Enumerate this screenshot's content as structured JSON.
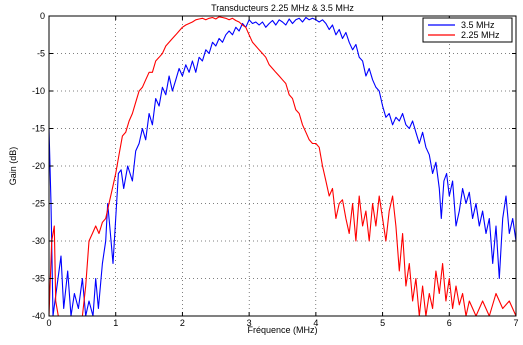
{
  "chart_data": {
    "type": "line",
    "title": "Transducteurs 2.25 MHz & 3.5 MHz",
    "xlabel": "Fréquence (MHz)",
    "ylabel": "Gain (dB)",
    "xlim": [
      0,
      7
    ],
    "ylim": [
      -40,
      0
    ],
    "xticks": [
      0,
      1,
      2,
      3,
      4,
      5,
      6,
      7
    ],
    "yticks": [
      0,
      -5,
      -10,
      -15,
      -20,
      -25,
      -30,
      -35,
      -40
    ],
    "grid": true,
    "legend_position": "top-right",
    "series": [
      {
        "name": "3.5 MHz",
        "color": "#0000ff",
        "points": [
          [
            0.0,
            -15.0
          ],
          [
            0.03,
            -25.0
          ],
          [
            0.06,
            -40.0
          ],
          [
            0.12,
            -36.0
          ],
          [
            0.18,
            -32.0
          ],
          [
            0.22,
            -39.0
          ],
          [
            0.28,
            -34.0
          ],
          [
            0.33,
            -40.0
          ],
          [
            0.38,
            -37.0
          ],
          [
            0.44,
            -39.0
          ],
          [
            0.5,
            -35.0
          ],
          [
            0.55,
            -40.0
          ],
          [
            0.6,
            -38.0
          ],
          [
            0.66,
            -40.0
          ],
          [
            0.7,
            -35.0
          ],
          [
            0.74,
            -39.0
          ],
          [
            0.8,
            -33.0
          ],
          [
            0.85,
            -30.0
          ],
          [
            0.88,
            -25.0
          ],
          [
            0.92,
            -29.0
          ],
          [
            0.96,
            -33.0
          ],
          [
            1.0,
            -27.0
          ],
          [
            1.04,
            -21.0
          ],
          [
            1.08,
            -20.5
          ],
          [
            1.12,
            -23.0
          ],
          [
            1.18,
            -20.0
          ],
          [
            1.25,
            -22.0
          ],
          [
            1.3,
            -18.0
          ],
          [
            1.35,
            -17.0
          ],
          [
            1.4,
            -15.0
          ],
          [
            1.45,
            -16.5
          ],
          [
            1.5,
            -13.0
          ],
          [
            1.55,
            -14.5
          ],
          [
            1.6,
            -11.0
          ],
          [
            1.65,
            -12.0
          ],
          [
            1.7,
            -9.5
          ],
          [
            1.75,
            -10.5
          ],
          [
            1.8,
            -8.0
          ],
          [
            1.85,
            -10.0
          ],
          [
            1.9,
            -8.5
          ],
          [
            1.95,
            -7.0
          ],
          [
            2.0,
            -8.0
          ],
          [
            2.05,
            -6.5
          ],
          [
            2.1,
            -7.5
          ],
          [
            2.15,
            -6.0
          ],
          [
            2.2,
            -7.5
          ],
          [
            2.25,
            -5.5
          ],
          [
            2.3,
            -6.0
          ],
          [
            2.35,
            -4.5
          ],
          [
            2.4,
            -5.0
          ],
          [
            2.45,
            -3.5
          ],
          [
            2.5,
            -4.0
          ],
          [
            2.55,
            -3.0
          ],
          [
            2.6,
            -3.5
          ],
          [
            2.65,
            -2.5
          ],
          [
            2.7,
            -2.0
          ],
          [
            2.75,
            -2.5
          ],
          [
            2.8,
            -1.5
          ],
          [
            2.85,
            -2.0
          ],
          [
            2.9,
            -1.0
          ],
          [
            2.95,
            -1.5
          ],
          [
            3.0,
            -0.5
          ],
          [
            3.05,
            -1.0
          ],
          [
            3.1,
            -0.8
          ],
          [
            3.15,
            -1.2
          ],
          [
            3.2,
            -0.8
          ],
          [
            3.25,
            -1.5
          ],
          [
            3.3,
            -1.0
          ],
          [
            3.35,
            -0.6
          ],
          [
            3.4,
            -1.2
          ],
          [
            3.45,
            -0.5
          ],
          [
            3.5,
            -0.8
          ],
          [
            3.55,
            -1.2
          ],
          [
            3.6,
            -0.4
          ],
          [
            3.65,
            -1.0
          ],
          [
            3.7,
            -0.5
          ],
          [
            3.75,
            -0.3
          ],
          [
            3.8,
            -0.8
          ],
          [
            3.85,
            -0.2
          ],
          [
            3.9,
            -0.5
          ],
          [
            3.95,
            -0.3
          ],
          [
            4.0,
            -0.5
          ],
          [
            4.05,
            -0.8
          ],
          [
            4.1,
            -0.5
          ],
          [
            4.15,
            -1.0
          ],
          [
            4.2,
            -1.8
          ],
          [
            4.25,
            -1.2
          ],
          [
            4.3,
            -2.5
          ],
          [
            4.35,
            -1.8
          ],
          [
            4.4,
            -3.0
          ],
          [
            4.45,
            -2.2
          ],
          [
            4.5,
            -3.5
          ],
          [
            4.55,
            -4.5
          ],
          [
            4.6,
            -3.8
          ],
          [
            4.65,
            -5.5
          ],
          [
            4.7,
            -6.0
          ],
          [
            4.75,
            -8.0
          ],
          [
            4.8,
            -7.0
          ],
          [
            4.85,
            -8.5
          ],
          [
            4.9,
            -9.5
          ],
          [
            4.95,
            -10.0
          ],
          [
            5.0,
            -12.0
          ],
          [
            5.05,
            -13.5
          ],
          [
            5.1,
            -13.0
          ],
          [
            5.15,
            -14.5
          ],
          [
            5.2,
            -13.5
          ],
          [
            5.25,
            -14.0
          ],
          [
            5.3,
            -13.0
          ],
          [
            5.35,
            -14.5
          ],
          [
            5.4,
            -15.0
          ],
          [
            5.45,
            -14.0
          ],
          [
            5.5,
            -15.5
          ],
          [
            5.55,
            -17.0
          ],
          [
            5.6,
            -15.5
          ],
          [
            5.65,
            -17.5
          ],
          [
            5.7,
            -18.5
          ],
          [
            5.75,
            -21.0
          ],
          [
            5.8,
            -19.5
          ],
          [
            5.85,
            -23.0
          ],
          [
            5.88,
            -27.0
          ],
          [
            5.92,
            -22.0
          ],
          [
            5.96,
            -21.0
          ],
          [
            6.0,
            -24.0
          ],
          [
            6.05,
            -22.0
          ],
          [
            6.1,
            -28.0
          ],
          [
            6.15,
            -26.0
          ],
          [
            6.2,
            -23.0
          ],
          [
            6.25,
            -25.0
          ],
          [
            6.3,
            -23.5
          ],
          [
            6.35,
            -27.0
          ],
          [
            6.4,
            -25.0
          ],
          [
            6.45,
            -28.0
          ],
          [
            6.5,
            -26.0
          ],
          [
            6.55,
            -29.0
          ],
          [
            6.6,
            -27.0
          ],
          [
            6.65,
            -33.0
          ],
          [
            6.7,
            -28.0
          ],
          [
            6.75,
            -35.0
          ],
          [
            6.8,
            -27.0
          ],
          [
            6.85,
            -24.0
          ],
          [
            6.9,
            -29.0
          ],
          [
            6.95,
            -27.0
          ],
          [
            7.0,
            -30.0
          ]
        ]
      },
      {
        "name": "2.25 MHz",
        "color": "#ff0000",
        "points": [
          [
            0.0,
            -40.0
          ],
          [
            0.04,
            -30.0
          ],
          [
            0.08,
            -28.0
          ],
          [
            0.1,
            -38.0
          ],
          [
            0.14,
            -40.0
          ],
          [
            0.2,
            -40.0
          ],
          [
            0.3,
            -40.0
          ],
          [
            0.4,
            -40.0
          ],
          [
            0.5,
            -40.0
          ],
          [
            0.55,
            -36.0
          ],
          [
            0.6,
            -30.0
          ],
          [
            0.65,
            -29.0
          ],
          [
            0.7,
            -28.0
          ],
          [
            0.75,
            -29.0
          ],
          [
            0.8,
            -27.5
          ],
          [
            0.85,
            -27.0
          ],
          [
            0.9,
            -25.0
          ],
          [
            0.95,
            -23.0
          ],
          [
            1.0,
            -21.0
          ],
          [
            1.05,
            -18.5
          ],
          [
            1.1,
            -16.0
          ],
          [
            1.15,
            -15.5
          ],
          [
            1.2,
            -14.0
          ],
          [
            1.25,
            -13.0
          ],
          [
            1.3,
            -11.5
          ],
          [
            1.35,
            -10.0
          ],
          [
            1.4,
            -9.5
          ],
          [
            1.45,
            -8.5
          ],
          [
            1.5,
            -7.5
          ],
          [
            1.55,
            -7.5
          ],
          [
            1.6,
            -6.0
          ],
          [
            1.65,
            -5.5
          ],
          [
            1.7,
            -5.0
          ],
          [
            1.75,
            -4.0
          ],
          [
            1.8,
            -3.5
          ],
          [
            1.85,
            -3.0
          ],
          [
            1.9,
            -2.5
          ],
          [
            1.95,
            -2.0
          ],
          [
            2.0,
            -1.5
          ],
          [
            2.05,
            -1.2
          ],
          [
            2.1,
            -1.0
          ],
          [
            2.15,
            -0.8
          ],
          [
            2.2,
            -0.5
          ],
          [
            2.25,
            -0.4
          ],
          [
            2.3,
            -0.3
          ],
          [
            2.35,
            -0.5
          ],
          [
            2.4,
            -0.3
          ],
          [
            2.45,
            -0.2
          ],
          [
            2.5,
            -0.4
          ],
          [
            2.55,
            -0.1
          ],
          [
            2.6,
            -0.2
          ],
          [
            2.65,
            -0.3
          ],
          [
            2.7,
            -0.5
          ],
          [
            2.75,
            -0.3
          ],
          [
            2.8,
            -0.6
          ],
          [
            2.85,
            -0.8
          ],
          [
            2.9,
            -1.2
          ],
          [
            2.95,
            -1.5
          ],
          [
            3.0,
            -2.5
          ],
          [
            3.05,
            -3.5
          ],
          [
            3.1,
            -4.0
          ],
          [
            3.15,
            -4.5
          ],
          [
            3.2,
            -5.0
          ],
          [
            3.25,
            -5.5
          ],
          [
            3.3,
            -6.5
          ],
          [
            3.35,
            -7.0
          ],
          [
            3.4,
            -7.5
          ],
          [
            3.45,
            -8.0
          ],
          [
            3.5,
            -8.5
          ],
          [
            3.55,
            -9.0
          ],
          [
            3.6,
            -10.5
          ],
          [
            3.65,
            -11.0
          ],
          [
            3.7,
            -12.5
          ],
          [
            3.75,
            -13.0
          ],
          [
            3.8,
            -14.5
          ],
          [
            3.85,
            -15.5
          ],
          [
            3.9,
            -16.5
          ],
          [
            3.95,
            -17.0
          ],
          [
            4.0,
            -17.0
          ],
          [
            4.05,
            -17.5
          ],
          [
            4.1,
            -20.0
          ],
          [
            4.15,
            -22.0
          ],
          [
            4.2,
            -24.0
          ],
          [
            4.25,
            -23.0
          ],
          [
            4.3,
            -27.0
          ],
          [
            4.35,
            -25.0
          ],
          [
            4.4,
            -24.5
          ],
          [
            4.45,
            -27.0
          ],
          [
            4.5,
            -29.0
          ],
          [
            4.55,
            -25.0
          ],
          [
            4.6,
            -30.0
          ],
          [
            4.65,
            -24.0
          ],
          [
            4.7,
            -28.0
          ],
          [
            4.75,
            -26.0
          ],
          [
            4.8,
            -30.0
          ],
          [
            4.85,
            -25.0
          ],
          [
            4.9,
            -28.0
          ],
          [
            4.95,
            -24.0
          ],
          [
            5.0,
            -27.0
          ],
          [
            5.05,
            -30.0
          ],
          [
            5.1,
            -26.0
          ],
          [
            5.15,
            -24.0
          ],
          [
            5.2,
            -28.0
          ],
          [
            5.25,
            -34.0
          ],
          [
            5.3,
            -29.0
          ],
          [
            5.35,
            -36.0
          ],
          [
            5.4,
            -33.0
          ],
          [
            5.45,
            -38.0
          ],
          [
            5.5,
            -35.0
          ],
          [
            5.55,
            -40.0
          ],
          [
            5.6,
            -36.0
          ],
          [
            5.65,
            -40.0
          ],
          [
            5.7,
            -37.0
          ],
          [
            5.75,
            -39.0
          ],
          [
            5.8,
            -34.0
          ],
          [
            5.85,
            -37.0
          ],
          [
            5.9,
            -33.0
          ],
          [
            5.95,
            -38.0
          ],
          [
            6.0,
            -35.0
          ],
          [
            6.05,
            -39.0
          ],
          [
            6.1,
            -36.0
          ],
          [
            6.15,
            -38.5
          ],
          [
            6.2,
            -37.0
          ],
          [
            6.25,
            -40.0
          ],
          [
            6.3,
            -38.0
          ],
          [
            6.4,
            -40.0
          ],
          [
            6.5,
            -38.0
          ],
          [
            6.6,
            -40.0
          ],
          [
            6.7,
            -37.0
          ],
          [
            6.8,
            -39.0
          ],
          [
            6.9,
            -38.0
          ],
          [
            7.0,
            -40.0
          ]
        ]
      }
    ]
  }
}
